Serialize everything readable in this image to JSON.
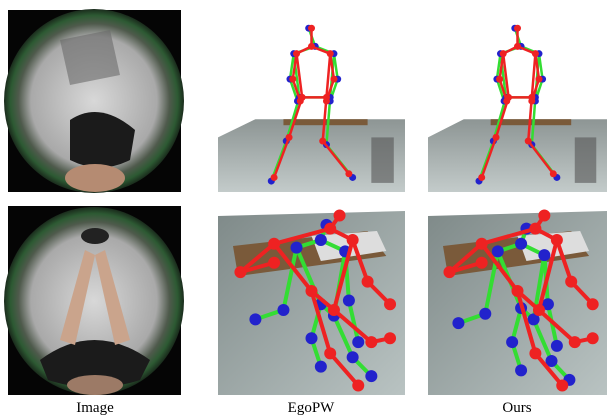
{
  "captions": [
    "Image",
    "EgoPW",
    "Ours"
  ]
}
